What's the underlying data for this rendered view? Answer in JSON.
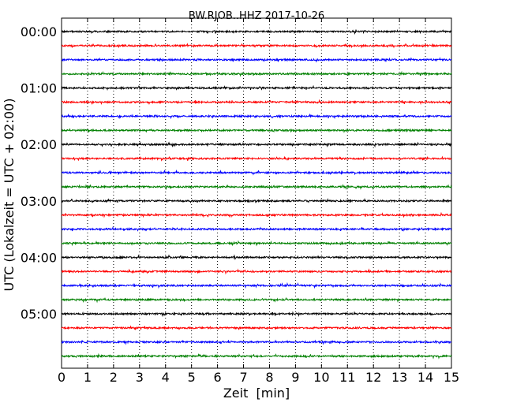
{
  "chart_data": {
    "type": "line",
    "title": "BW.RJOB..HHZ 2017-10-26",
    "xlabel": "Zeit  [min]",
    "ylabel": "UTC (Lokalzeit = UTC + 02:00)",
    "xlim": [
      0,
      15
    ],
    "x_ticks": [
      "0",
      "1",
      "2",
      "3",
      "4",
      "5",
      "6",
      "7",
      "8",
      "9",
      "10",
      "11",
      "12",
      "13",
      "14",
      "15"
    ],
    "y_ticks": [
      "00:00",
      "01:00",
      "02:00",
      "03:00",
      "04:00",
      "05:00"
    ],
    "vertical_grid": "dotted",
    "trace_colors": [
      "#000000",
      "#ff0000",
      "#0000ff",
      "#008000"
    ],
    "traces_per_hour": 4,
    "trace_count": 24,
    "trace_minutes": 15
  }
}
